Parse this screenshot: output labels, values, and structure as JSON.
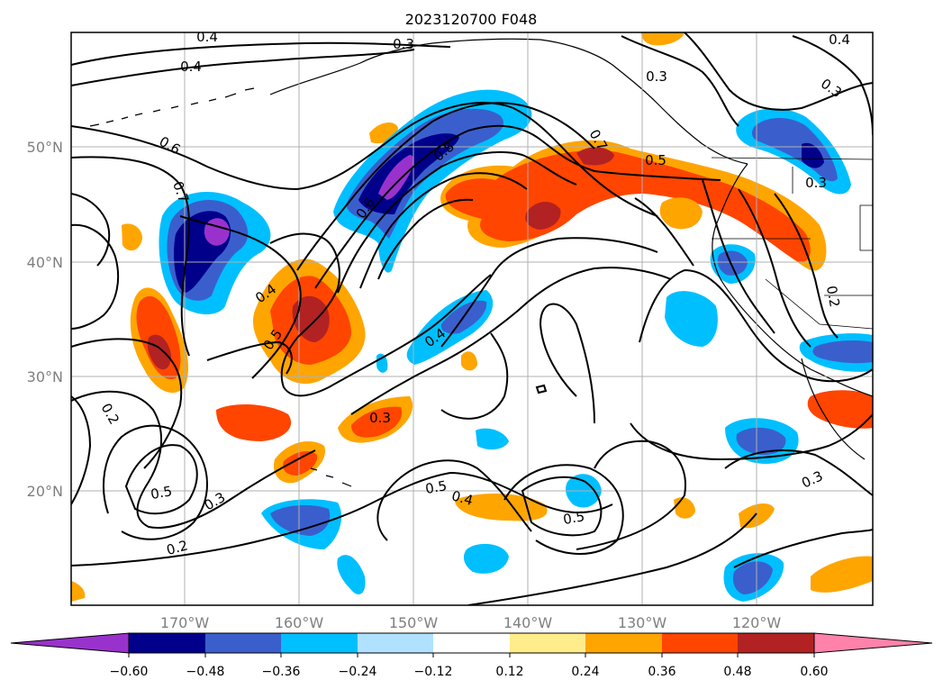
{
  "title": "2023120700 F048",
  "axes": {
    "lat_ticks": [
      "50°N",
      "40°N",
      "30°N",
      "20°N"
    ],
    "lon_ticks": [
      "170°W",
      "160°W",
      "150°W",
      "140°W",
      "130°W",
      "120°W"
    ]
  },
  "colorbar": {
    "tick_labels": [
      "−0.60",
      "−0.48",
      "−0.36",
      "−0.24",
      "−0.12",
      "0.12",
      "0.24",
      "0.36",
      "0.48",
      "0.60"
    ],
    "bins": [
      "#9932cc",
      "#00008b",
      "#3a5fcd",
      "#00bfff",
      "#b0e2ff",
      "#ffffff",
      "#ffec8b",
      "#ffa500",
      "#ff4500",
      "#b22222",
      "#ff82ab"
    ],
    "extend": "both"
  },
  "contour_labels": [
    "0.4",
    "0.3",
    "0.4",
    "0.3",
    "0.4",
    "0.3",
    "0.6",
    "0.7",
    "0.8",
    "0.7",
    "0.5",
    "0.6",
    "0.3",
    "0.4",
    "0.5",
    "0.4",
    "0.2",
    "0.3",
    "0.5",
    "0.3",
    "0.5",
    "0.4",
    "0.5",
    "0.2",
    "0.3",
    "0.2"
  ],
  "colors": {
    "contour": "#000000",
    "grid": "#b0b0b0",
    "coast": "#000000"
  }
}
